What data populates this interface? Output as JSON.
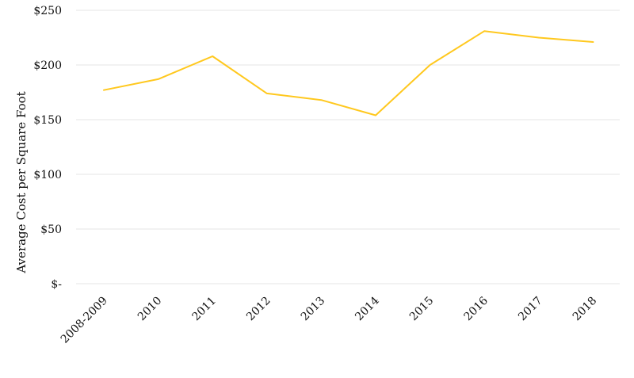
{
  "chart_data": {
    "type": "line",
    "title": "",
    "xlabel": "",
    "ylabel": "Average Cost per Square Foot",
    "categories": [
      "2008-2009",
      "2010",
      "2011",
      "2012",
      "2013",
      "2014",
      "2015",
      "2016",
      "2017",
      "2018"
    ],
    "series": [
      {
        "color": "#FFC81E",
        "values": [
          177,
          187,
          208,
          174,
          168,
          154,
          200,
          231,
          225,
          221
        ]
      }
    ],
    "ylim": [
      0,
      250
    ],
    "yticks": [
      0,
      50,
      100,
      150,
      200,
      250
    ],
    "ytick_labels": [
      "$-",
      "$50",
      "$100",
      "$150",
      "$200",
      "$250"
    ],
    "grid": true,
    "legend": "none"
  }
}
